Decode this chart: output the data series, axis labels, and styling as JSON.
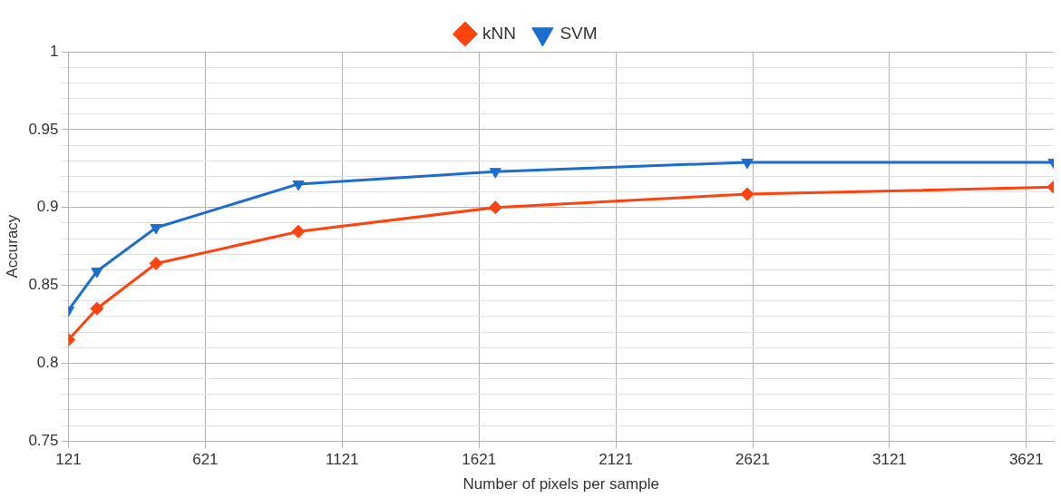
{
  "chart_data": {
    "type": "line",
    "xlabel": "Number of pixels per sample",
    "ylabel": "Accuracy",
    "x": [
      121,
      225,
      441,
      961,
      1681,
      2601,
      3721
    ],
    "series": [
      {
        "name": "kNN",
        "color": "#ff420e",
        "marker": "diamond",
        "values": [
          0.815,
          0.835,
          0.864,
          0.8845,
          0.9,
          0.9085,
          0.913
        ]
      },
      {
        "name": "SVM",
        "color": "#1c6dd0",
        "marker": "triangle",
        "values": [
          0.834,
          0.859,
          0.887,
          0.915,
          0.923,
          0.929,
          0.929
        ]
      }
    ],
    "xlim": [
      121,
      3721
    ],
    "xticks": [
      121,
      621,
      1121,
      1621,
      2121,
      2621,
      3121,
      3621
    ],
    "ylim": [
      0.75,
      1
    ],
    "yticks": [
      0.75,
      {
        "value": 0.76,
        "label": null
      },
      {
        "value": 0.77,
        "label": null
      },
      {
        "value": 0.78,
        "label": null
      },
      {
        "value": 0.79,
        "label": null
      },
      0.8,
      {
        "value": 0.81,
        "label": null
      },
      {
        "value": 0.82,
        "label": null
      },
      {
        "value": 0.83,
        "label": null
      },
      {
        "value": 0.84,
        "label": null
      },
      0.85,
      {
        "value": 0.86,
        "label": null
      },
      {
        "value": 0.87,
        "label": null
      },
      {
        "value": 0.88,
        "label": null
      },
      {
        "value": 0.89,
        "label": null
      },
      0.9,
      {
        "value": 0.91,
        "label": null
      },
      {
        "value": 0.92,
        "label": null
      },
      {
        "value": 0.93,
        "label": null
      },
      {
        "value": 0.94,
        "label": null
      },
      0.95,
      {
        "value": 0.96,
        "label": null
      },
      {
        "value": 0.97,
        "label": null
      },
      {
        "value": 0.98,
        "label": null
      },
      {
        "value": 0.99,
        "label": null
      },
      1
    ],
    "grid": true,
    "legend": "top",
    "line_style": "solid"
  }
}
